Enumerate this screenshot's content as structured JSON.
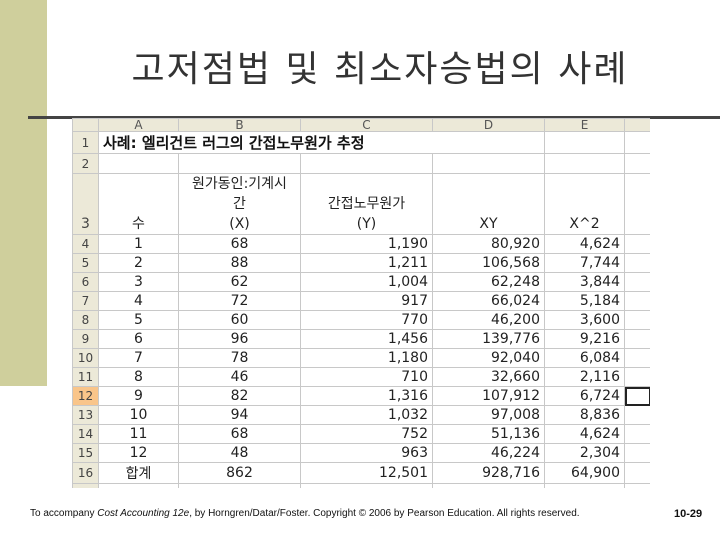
{
  "slide": {
    "title": "고저점법 및 최소자승법의 사례",
    "footer_prefix": "To accompany ",
    "footer_book": "Cost Accounting 12e",
    "footer_suffix": ", by Horngren/Datar/Foster. Copyright © 2006 by Pearson Education. All rights reserved.",
    "page_number": "10-29",
    "accent_color": "#cfcf9c"
  },
  "sheet": {
    "columns": [
      "A",
      "B",
      "C",
      "D",
      "E"
    ],
    "title": "사례: 엘리건트 러그의 간접노무원가 추정",
    "header": {
      "a": "수",
      "b1": "원가동인:기계시",
      "b2": "간",
      "b3": "(X)",
      "c1": "간접노무원가",
      "c2": "(Y)",
      "d": "XY",
      "e": "X^2"
    },
    "rows": [
      {
        "a": "1",
        "b": "68",
        "c": "1,190",
        "d": "80,920",
        "e": "4,624"
      },
      {
        "a": "2",
        "b": "88",
        "c": "1,211",
        "d": "106,568",
        "e": "7,744"
      },
      {
        "a": "3",
        "b": "62",
        "c": "1,004",
        "d": "62,248",
        "e": "3,844"
      },
      {
        "a": "4",
        "b": "72",
        "c": "917",
        "d": "66,024",
        "e": "5,184"
      },
      {
        "a": "5",
        "b": "60",
        "c": "770",
        "d": "46,200",
        "e": "3,600"
      },
      {
        "a": "6",
        "b": "96",
        "c": "1,456",
        "d": "139,776",
        "e": "9,216"
      },
      {
        "a": "7",
        "b": "78",
        "c": "1,180",
        "d": "92,040",
        "e": "6,084"
      },
      {
        "a": "8",
        "b": "46",
        "c": "710",
        "d": "32,660",
        "e": "2,116"
      },
      {
        "a": "9",
        "b": "82",
        "c": "1,316",
        "d": "107,912",
        "e": "6,724"
      },
      {
        "a": "10",
        "b": "94",
        "c": "1,032",
        "d": "97,008",
        "e": "8,836"
      },
      {
        "a": "11",
        "b": "68",
        "c": "752",
        "d": "51,136",
        "e": "4,624"
      },
      {
        "a": "12",
        "b": "48",
        "c": "963",
        "d": "46,224",
        "e": "2,304"
      }
    ],
    "total": {
      "a": "합계",
      "b": "862",
      "c": "12,501",
      "d": "928,716",
      "e": "64,900"
    }
  }
}
